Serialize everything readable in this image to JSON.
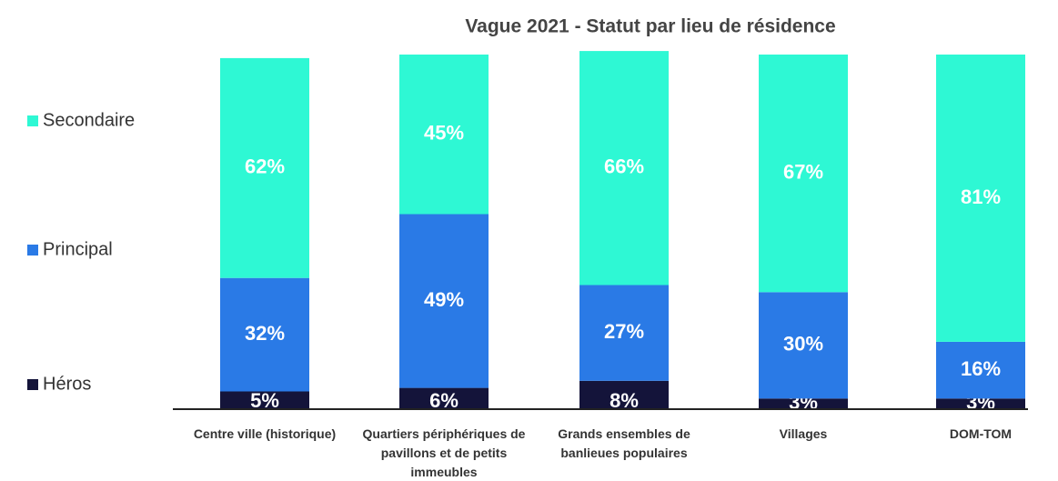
{
  "chart_data": {
    "type": "stacked_bar",
    "title": "Vague 2021 - Statut par lieu de résidence",
    "categories": [
      "Centre ville (historique)",
      "Quartiers périphériques de pavillons et de petits immeubles",
      "Grands ensembles de banlieues populaires",
      "Villages",
      "DOM-TOM"
    ],
    "series": [
      {
        "name": "Héros",
        "color": "#14143a",
        "values": [
          5,
          6,
          8,
          3,
          3
        ],
        "value_labels": [
          "5%",
          "6%",
          "8%",
          "3%",
          "3%"
        ]
      },
      {
        "name": "Principal",
        "color": "#2a7ae6",
        "values": [
          32,
          49,
          27,
          30,
          16
        ],
        "value_labels": [
          "32%",
          "49%",
          "27%",
          "30%",
          "16%"
        ]
      },
      {
        "name": "Secondaire",
        "color": "#2ef8d4",
        "values": [
          62,
          45,
          66,
          67,
          81
        ],
        "value_labels": [
          "62%",
          "45%",
          "66%",
          "67%",
          "81%"
        ]
      }
    ],
    "ylim": [
      0,
      100
    ],
    "legend": "left"
  }
}
